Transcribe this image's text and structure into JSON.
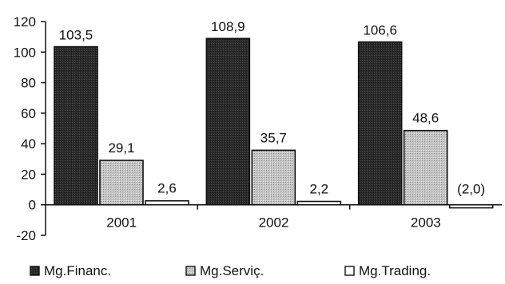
{
  "chart_data": {
    "type": "bar",
    "categories": [
      "2001",
      "2002",
      "2003"
    ],
    "series": [
      {
        "name": "Mg.Financ.",
        "values": [
          103.5,
          108.9,
          106.6
        ],
        "labels": [
          "103,5",
          "108,9",
          "106,6"
        ],
        "color": "#2b2b2b"
      },
      {
        "name": "Mg.Serviç.",
        "values": [
          29.1,
          35.7,
          48.6
        ],
        "labels": [
          "29,1",
          "35,7",
          "48,6"
        ],
        "color": "#bdbdbd"
      },
      {
        "name": "Mg.Trading.",
        "values": [
          2.6,
          2.2,
          -2.0
        ],
        "labels": [
          "2,6",
          "2,2",
          "(2,0)"
        ],
        "color": "#ffffff"
      }
    ],
    "ylim": [
      -20,
      120
    ],
    "yticks": [
      -20,
      0,
      20,
      40,
      60,
      80,
      100,
      120
    ],
    "grid": false,
    "legend_position": "bottom",
    "title": "",
    "xlabel": "",
    "ylabel": ""
  }
}
